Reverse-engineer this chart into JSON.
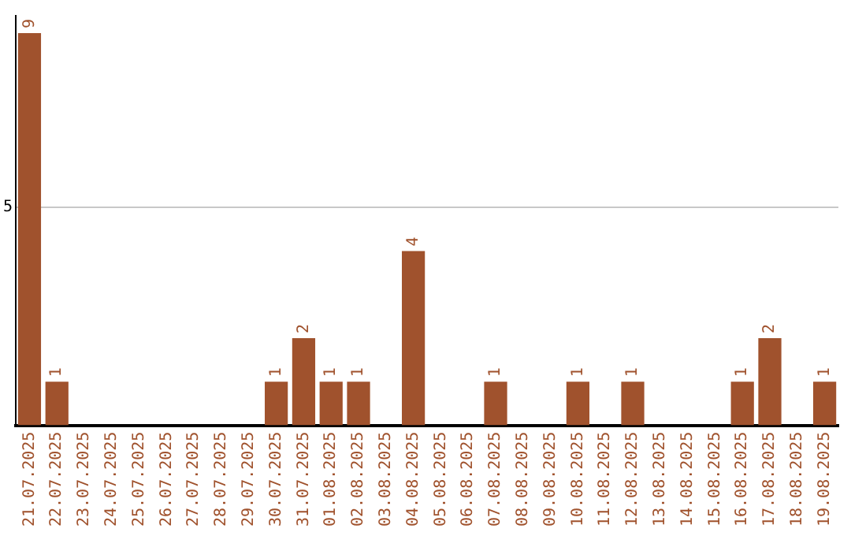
{
  "chart_data": {
    "type": "bar",
    "categories": [
      "21.07.2025",
      "22.07.2025",
      "23.07.2025",
      "24.07.2025",
      "25.07.2025",
      "26.07.2025",
      "27.07.2025",
      "28.07.2025",
      "29.07.2025",
      "30.07.2025",
      "31.07.2025",
      "01.08.2025",
      "02.08.2025",
      "03.08.2025",
      "04.08.2025",
      "05.08.2025",
      "06.08.2025",
      "07.08.2025",
      "08.08.2025",
      "09.08.2025",
      "10.08.2025",
      "11.08.2025",
      "12.08.2025",
      "13.08.2025",
      "14.08.2025",
      "15.08.2025",
      "16.08.2025",
      "17.08.2025",
      "18.08.2025",
      "19.08.2025"
    ],
    "values": [
      9,
      1,
      0,
      0,
      0,
      0,
      0,
      0,
      0,
      1,
      2,
      1,
      1,
      0,
      4,
      0,
      0,
      1,
      0,
      0,
      1,
      0,
      1,
      0,
      0,
      0,
      1,
      2,
      0,
      1
    ],
    "value_labels": [
      "9",
      "1",
      null,
      null,
      null,
      null,
      null,
      null,
      null,
      "1",
      "2",
      "1",
      "1",
      null,
      "4",
      null,
      null,
      "1",
      null,
      null,
      "1",
      null,
      "1",
      null,
      null,
      null,
      "1",
      "2",
      null,
      "1"
    ],
    "color": "#a0522d",
    "ylim": [
      0,
      9.4
    ],
    "yticks": [
      5
    ],
    "grid": "y",
    "legend": false
  }
}
